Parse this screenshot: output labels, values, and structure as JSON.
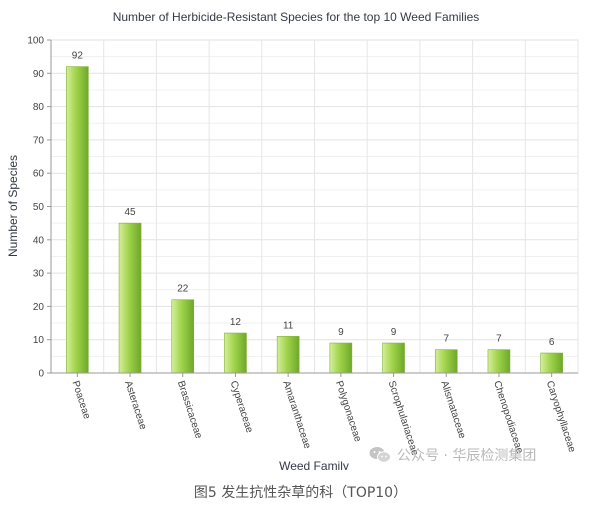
{
  "chart_data": {
    "type": "bar",
    "title": "Number of Herbicide-Resistant Species for the top 10 Weed Families",
    "xlabel": "Weed Family",
    "ylabel": "Number of Species",
    "categories": [
      "Poaceae",
      "Asteraceae",
      "Brassicaceae",
      "Cyperaceae",
      "Amaranthaceae",
      "Polygonaceae",
      "Scrophulariaceae",
      "Alismataceae",
      "Chenopodiaceae",
      "Caryophyllaceae"
    ],
    "values": [
      92,
      45,
      22,
      12,
      11,
      9,
      9,
      7,
      7,
      6
    ],
    "ylim": [
      0,
      100
    ],
    "yticks": [
      0,
      10,
      20,
      30,
      40,
      50,
      60,
      70,
      80,
      90,
      100
    ],
    "grid": true,
    "bar_color": "#8cc63f"
  },
  "watermark": {
    "text": "公众号 · 华辰检测集团",
    "icon": "wechat-icon"
  },
  "caption": "图5 发生抗性杂草的科（TOP10）"
}
